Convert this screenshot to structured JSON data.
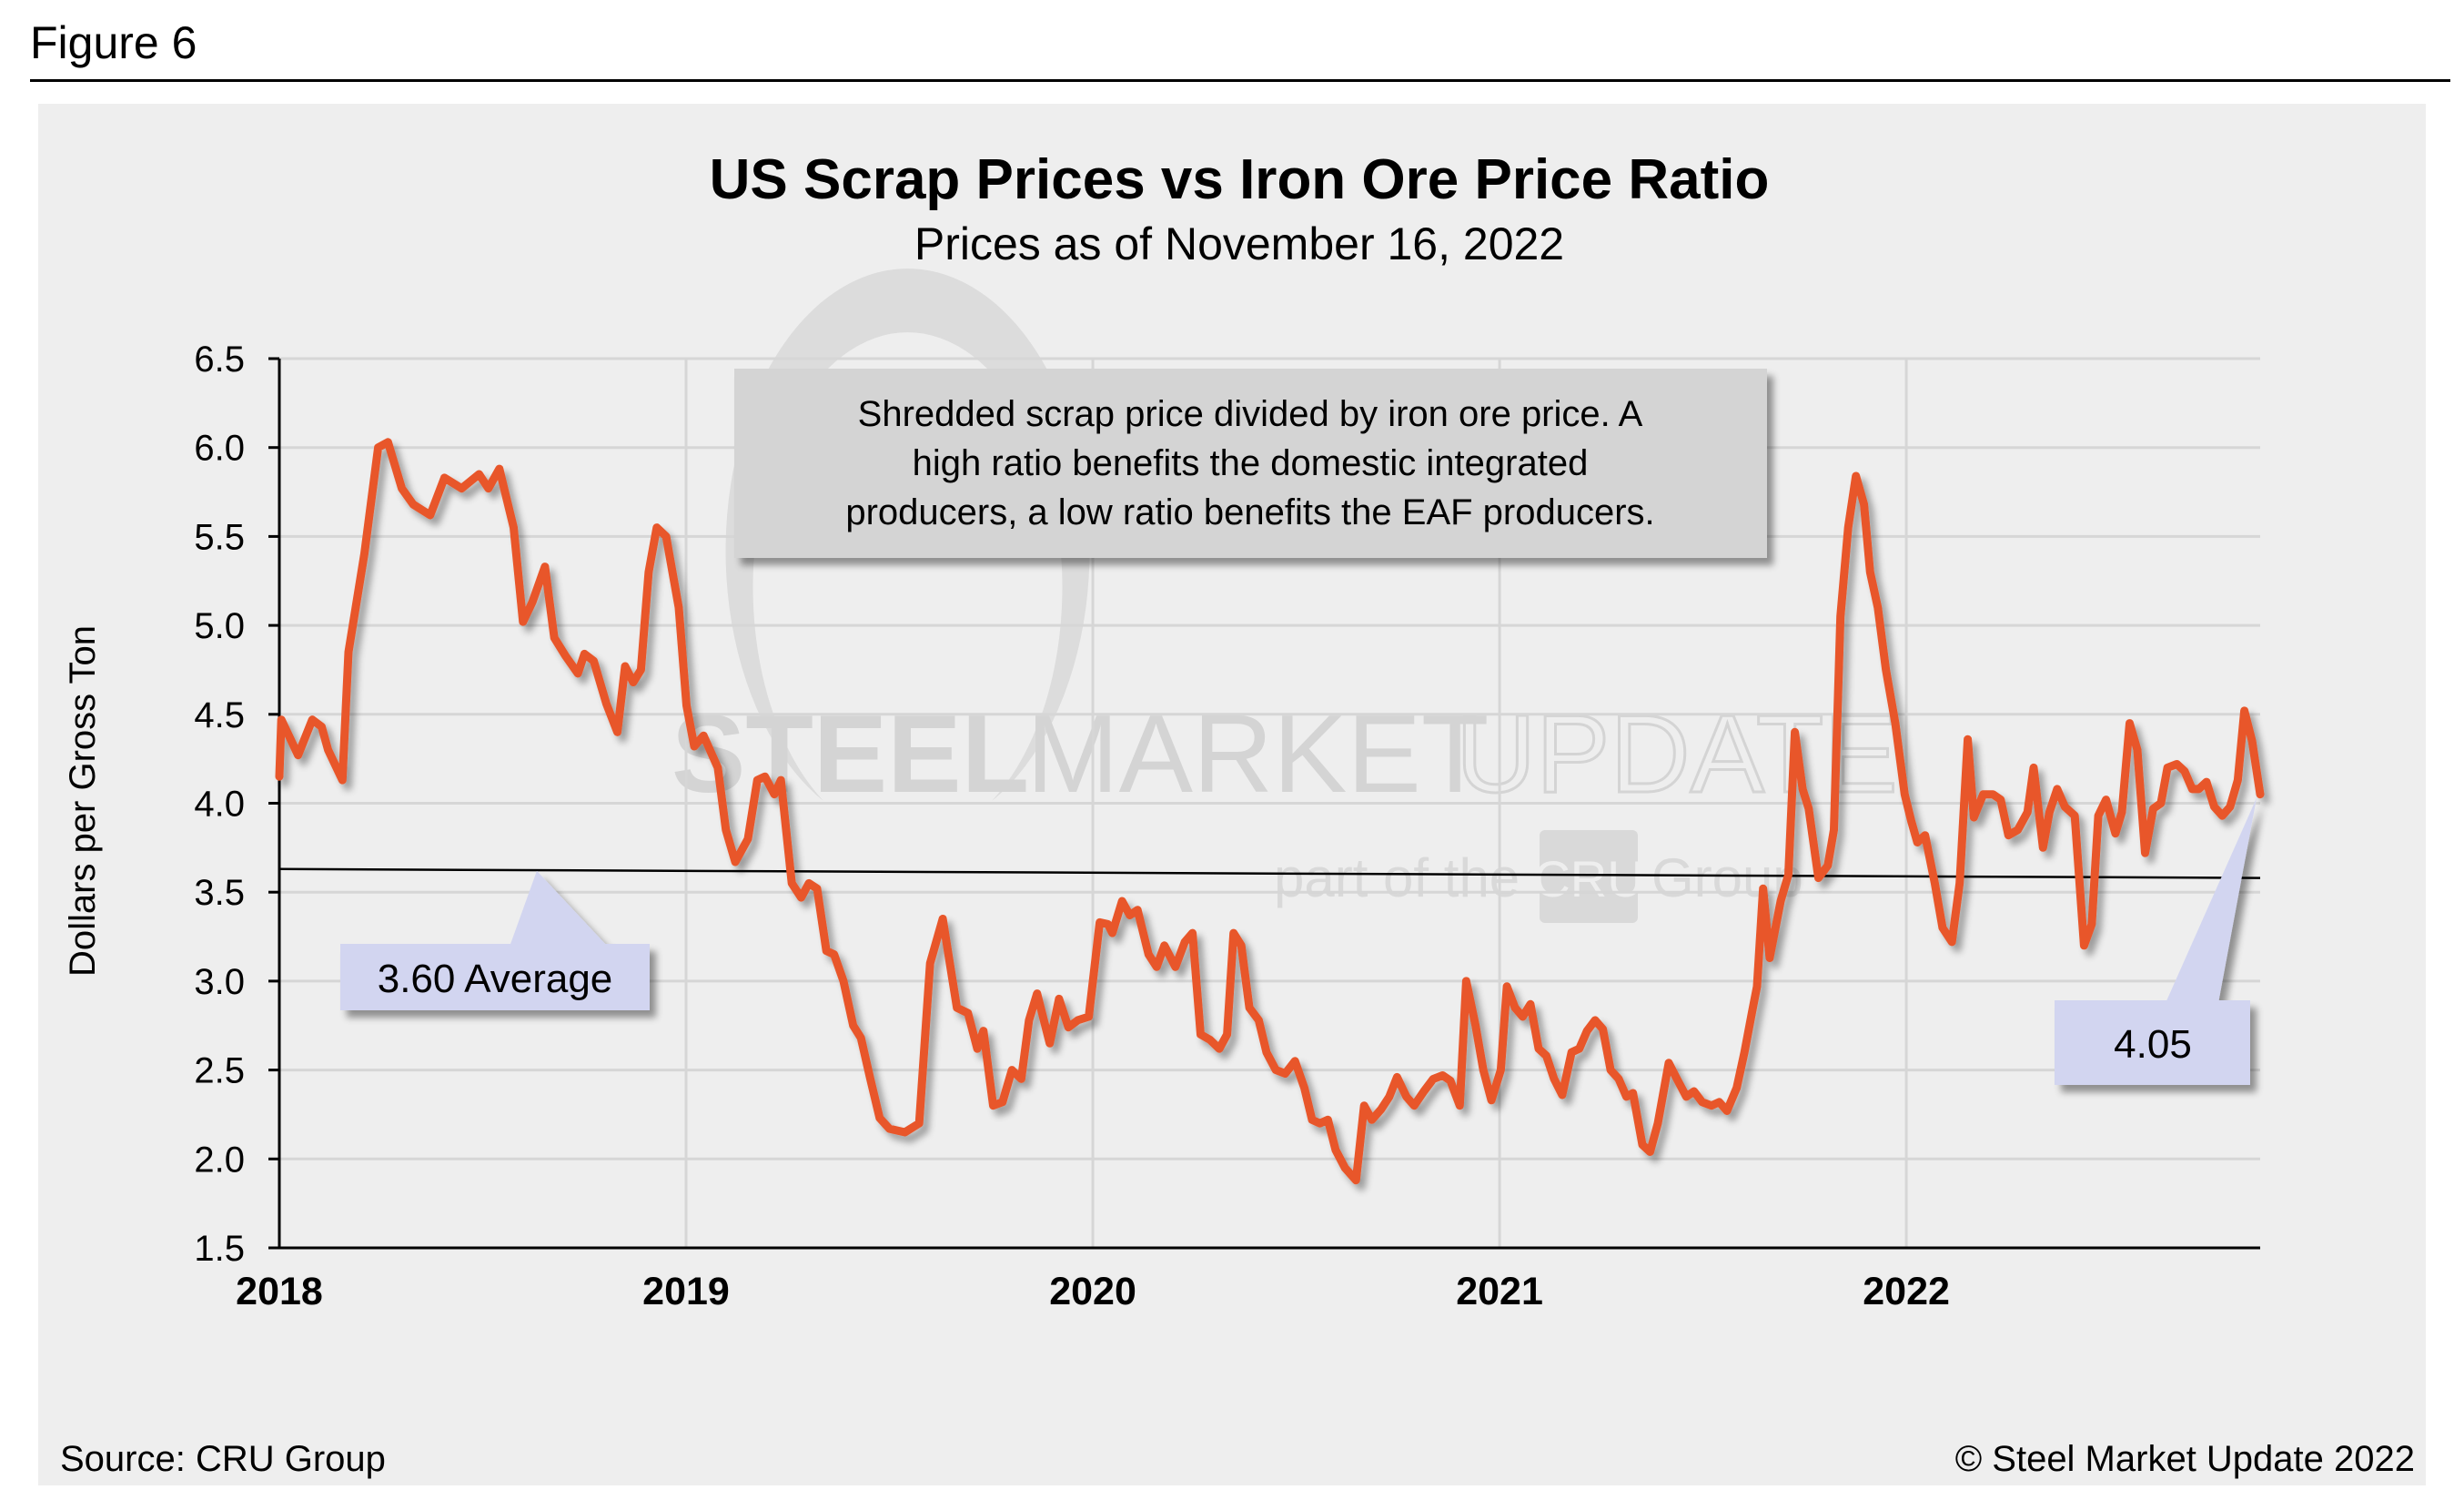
{
  "figure_label": "Figure 6",
  "footer": {
    "source": "Source: CRU Group",
    "copyright": "© Steel Market Update 2022"
  },
  "watermark": {
    "brand_bold": "STEEL",
    "brand_mid": "MARKET",
    "brand_light": "UPDATE",
    "tagline_pre": "part of the",
    "tagline_logo": "CRU",
    "tagline_post": "Group"
  },
  "colors": {
    "series": "#e8562a",
    "callout": "#d2d5f0",
    "note_box": "#d4d4d4",
    "background": "#eeeeee",
    "grid": "#d6d6d6"
  },
  "chart_data": {
    "type": "line",
    "title": "US Scrap Prices vs Iron Ore Price Ratio",
    "subtitle": "Prices as of November 16, 2022",
    "xlabel": "",
    "ylabel": "Dollars per Gross Ton",
    "ylim": [
      1.5,
      6.5
    ],
    "xlim": [
      2018.0,
      2022.87
    ],
    "yticks": [
      "6.5",
      "6.0",
      "5.5",
      "5.0",
      "4.5",
      "4.0",
      "3.5",
      "3.0",
      "2.5",
      "2.0",
      "1.5"
    ],
    "ytick_values": [
      6.5,
      6.0,
      5.5,
      5.0,
      4.5,
      4.0,
      3.5,
      3.0,
      2.5,
      2.0,
      1.5
    ],
    "xticks": [
      "2018",
      "2019",
      "2020",
      "2021",
      "2022"
    ],
    "xtick_values": [
      2018,
      2019,
      2020,
      2021,
      2022
    ],
    "grid": true,
    "annotation_note": "Shredded scrap price divided by iron ore price. A high ratio benefits the domestic integrated producers, a low ratio benefits the EAF producers.",
    "annotation_note_lines": [
      "Shredded scrap price divided by iron ore price. A",
      "high ratio benefits the domestic integrated",
      "producers, a low ratio benefits the EAF producers."
    ],
    "average": {
      "label": "3.60 Average",
      "value": 3.6,
      "line_start": 3.63,
      "line_end": 3.58
    },
    "latest": {
      "label": "4.05",
      "value": 4.05
    },
    "series": [
      {
        "name": "Scrap / Iron Ore Price Ratio",
        "points": [
          [
            2018.0,
            4.15
          ],
          [
            2018.005,
            4.47
          ],
          [
            2018.046,
            4.27
          ],
          [
            2018.081,
            4.47
          ],
          [
            2018.104,
            4.43
          ],
          [
            2018.12,
            4.3
          ],
          [
            2018.155,
            4.13
          ],
          [
            2018.17,
            4.85
          ],
          [
            2018.209,
            5.4
          ],
          [
            2018.243,
            6.0
          ],
          [
            2018.267,
            6.03
          ],
          [
            2018.301,
            5.77
          ],
          [
            2018.329,
            5.68
          ],
          [
            2018.371,
            5.62
          ],
          [
            2018.406,
            5.83
          ],
          [
            2018.448,
            5.77
          ],
          [
            2018.491,
            5.85
          ],
          [
            2018.514,
            5.77
          ],
          [
            2018.541,
            5.88
          ],
          [
            2018.576,
            5.55
          ],
          [
            2018.599,
            5.02
          ],
          [
            2018.622,
            5.13
          ],
          [
            2018.653,
            5.33
          ],
          [
            2018.676,
            4.93
          ],
          [
            2018.703,
            4.83
          ],
          [
            2018.734,
            4.73
          ],
          [
            2018.75,
            4.84
          ],
          [
            2018.773,
            4.8
          ],
          [
            2018.804,
            4.56
          ],
          [
            2018.831,
            4.4
          ],
          [
            2018.85,
            4.77
          ],
          [
            2018.87,
            4.68
          ],
          [
            2018.889,
            4.75
          ],
          [
            2018.908,
            5.3
          ],
          [
            2018.928,
            5.55
          ],
          [
            2018.951,
            5.5
          ],
          [
            2018.982,
            5.1
          ],
          [
            2019.001,
            4.55
          ],
          [
            2019.02,
            4.32
          ],
          [
            2019.043,
            4.38
          ],
          [
            2019.078,
            4.2
          ],
          [
            2019.098,
            3.85
          ],
          [
            2019.121,
            3.67
          ],
          [
            2019.152,
            3.8
          ],
          [
            2019.175,
            4.13
          ],
          [
            2019.194,
            4.15
          ],
          [
            2019.217,
            4.05
          ],
          [
            2019.233,
            4.13
          ],
          [
            2019.26,
            3.55
          ],
          [
            2019.283,
            3.47
          ],
          [
            2019.302,
            3.55
          ],
          [
            2019.322,
            3.52
          ],
          [
            2019.345,
            3.17
          ],
          [
            2019.364,
            3.15
          ],
          [
            2019.387,
            3.0
          ],
          [
            2019.411,
            2.75
          ],
          [
            2019.43,
            2.68
          ],
          [
            2019.453,
            2.45
          ],
          [
            2019.476,
            2.23
          ],
          [
            2019.5,
            2.17
          ],
          [
            2019.538,
            2.15
          ],
          [
            2019.573,
            2.2
          ],
          [
            2019.6,
            3.1
          ],
          [
            2019.631,
            3.35
          ],
          [
            2019.666,
            2.85
          ],
          [
            2019.693,
            2.82
          ],
          [
            2019.716,
            2.62
          ],
          [
            2019.731,
            2.72
          ],
          [
            2019.755,
            2.3
          ],
          [
            2019.778,
            2.32
          ],
          [
            2019.801,
            2.5
          ],
          [
            2019.824,
            2.45
          ],
          [
            2019.843,
            2.78
          ],
          [
            2019.863,
            2.93
          ],
          [
            2019.894,
            2.65
          ],
          [
            2019.917,
            2.9
          ],
          [
            2019.94,
            2.74
          ],
          [
            2019.963,
            2.78
          ],
          [
            2019.99,
            2.8
          ],
          [
            2020.017,
            3.33
          ],
          [
            2020.037,
            3.32
          ],
          [
            2020.048,
            3.27
          ],
          [
            2020.072,
            3.45
          ],
          [
            2020.091,
            3.37
          ],
          [
            2020.11,
            3.4
          ],
          [
            2020.137,
            3.15
          ],
          [
            2020.157,
            3.08
          ],
          [
            2020.176,
            3.2
          ],
          [
            2020.203,
            3.08
          ],
          [
            2020.226,
            3.22
          ],
          [
            2020.245,
            3.27
          ],
          [
            2020.265,
            2.7
          ],
          [
            2020.288,
            2.67
          ],
          [
            2020.311,
            2.62
          ],
          [
            2020.33,
            2.7
          ],
          [
            2020.346,
            3.27
          ],
          [
            2020.365,
            3.2
          ],
          [
            2020.385,
            2.85
          ],
          [
            2020.408,
            2.78
          ],
          [
            2020.427,
            2.6
          ],
          [
            2020.45,
            2.5
          ],
          [
            2020.473,
            2.48
          ],
          [
            2020.497,
            2.55
          ],
          [
            2020.52,
            2.4
          ],
          [
            2020.539,
            2.22
          ],
          [
            2020.558,
            2.2
          ],
          [
            2020.578,
            2.22
          ],
          [
            2020.597,
            2.05
          ],
          [
            2020.62,
            1.95
          ],
          [
            2020.647,
            1.88
          ],
          [
            2020.667,
            2.3
          ],
          [
            2020.686,
            2.22
          ],
          [
            2020.709,
            2.28
          ],
          [
            2020.729,
            2.35
          ],
          [
            2020.748,
            2.46
          ],
          [
            2020.771,
            2.35
          ],
          [
            2020.79,
            2.3
          ],
          [
            2020.814,
            2.38
          ],
          [
            2020.837,
            2.45
          ],
          [
            2020.86,
            2.47
          ],
          [
            2020.879,
            2.44
          ],
          [
            2020.902,
            2.3
          ],
          [
            2020.918,
            3.0
          ],
          [
            2020.941,
            2.75
          ],
          [
            2020.96,
            2.5
          ],
          [
            2020.98,
            2.33
          ],
          [
            2021.003,
            2.5
          ],
          [
            2021.018,
            2.97
          ],
          [
            2021.038,
            2.85
          ],
          [
            2021.057,
            2.8
          ],
          [
            2021.076,
            2.87
          ],
          [
            2021.096,
            2.62
          ],
          [
            2021.115,
            2.58
          ],
          [
            2021.134,
            2.45
          ],
          [
            2021.154,
            2.36
          ],
          [
            2021.177,
            2.6
          ],
          [
            2021.196,
            2.62
          ],
          [
            2021.215,
            2.72
          ],
          [
            2021.235,
            2.78
          ],
          [
            2021.254,
            2.73
          ],
          [
            2021.273,
            2.5
          ],
          [
            2021.293,
            2.45
          ],
          [
            2021.312,
            2.35
          ],
          [
            2021.328,
            2.37
          ],
          [
            2021.351,
            2.08
          ],
          [
            2021.37,
            2.04
          ],
          [
            2021.389,
            2.2
          ],
          [
            2021.416,
            2.54
          ],
          [
            2021.436,
            2.45
          ],
          [
            2021.459,
            2.35
          ],
          [
            2021.478,
            2.38
          ],
          [
            2021.498,
            2.32
          ],
          [
            2021.521,
            2.3
          ],
          [
            2021.54,
            2.32
          ],
          [
            2021.559,
            2.27
          ],
          [
            2021.583,
            2.4
          ],
          [
            2021.602,
            2.6
          ],
          [
            2021.621,
            2.83
          ],
          [
            2021.633,
            2.97
          ],
          [
            2021.648,
            3.52
          ],
          [
            2021.664,
            3.13
          ],
          [
            2021.691,
            3.45
          ],
          [
            2021.71,
            3.6
          ],
          [
            2021.726,
            4.4
          ],
          [
            2021.745,
            4.08
          ],
          [
            2021.76,
            3.97
          ],
          [
            2021.784,
            3.58
          ],
          [
            2021.807,
            3.65
          ],
          [
            2021.822,
            3.85
          ],
          [
            2021.838,
            5.05
          ],
          [
            2021.857,
            5.55
          ],
          [
            2021.876,
            5.84
          ],
          [
            2021.896,
            5.68
          ],
          [
            2021.911,
            5.3
          ],
          [
            2021.93,
            5.1
          ],
          [
            2021.95,
            4.75
          ],
          [
            2021.973,
            4.45
          ],
          [
            2021.996,
            4.05
          ],
          [
            2022.012,
            3.9
          ],
          [
            2022.027,
            3.78
          ],
          [
            2022.046,
            3.82
          ],
          [
            2022.07,
            3.55
          ],
          [
            2022.089,
            3.3
          ],
          [
            2022.112,
            3.22
          ],
          [
            2022.131,
            3.55
          ],
          [
            2022.151,
            4.36
          ],
          [
            2022.166,
            3.92
          ],
          [
            2022.189,
            4.05
          ],
          [
            2022.213,
            4.05
          ],
          [
            2022.232,
            4.02
          ],
          [
            2022.251,
            3.82
          ],
          [
            2022.274,
            3.85
          ],
          [
            2022.298,
            3.95
          ],
          [
            2022.313,
            4.2
          ],
          [
            2022.336,
            3.75
          ],
          [
            2022.352,
            3.95
          ],
          [
            2022.371,
            4.08
          ],
          [
            2022.39,
            3.98
          ],
          [
            2022.414,
            3.93
          ],
          [
            2022.437,
            3.2
          ],
          [
            2022.456,
            3.32
          ],
          [
            2022.472,
            3.93
          ],
          [
            2022.491,
            4.02
          ],
          [
            2022.514,
            3.83
          ],
          [
            2022.53,
            3.95
          ],
          [
            2022.549,
            4.45
          ],
          [
            2022.568,
            4.3
          ],
          [
            2022.587,
            3.72
          ],
          [
            2022.607,
            3.97
          ],
          [
            2022.626,
            4.0
          ],
          [
            2022.642,
            4.2
          ],
          [
            2022.665,
            4.22
          ],
          [
            2022.684,
            4.18
          ],
          [
            2022.703,
            4.08
          ],
          [
            2022.719,
            4.08
          ],
          [
            2022.738,
            4.12
          ],
          [
            2022.757,
            3.98
          ],
          [
            2022.777,
            3.93
          ],
          [
            2022.796,
            3.98
          ],
          [
            2022.815,
            4.13
          ],
          [
            2022.831,
            4.52
          ],
          [
            2022.85,
            4.35
          ],
          [
            2022.87,
            4.05
          ]
        ]
      }
    ]
  }
}
